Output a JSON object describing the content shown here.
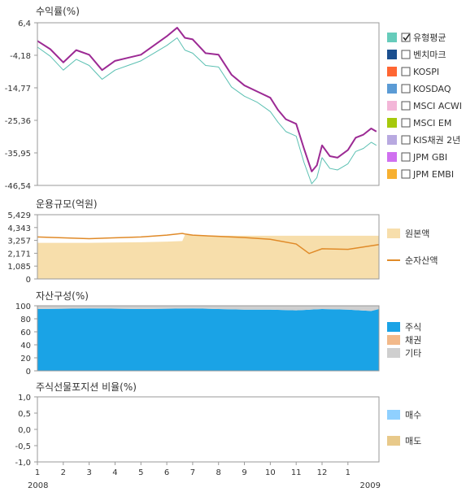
{
  "colors": {
    "fund": "#9c2a94",
    "bench": "#5bc0b2",
    "principal": "#f7deab",
    "net_assets": "#e08a28",
    "stock": "#1aa3e6",
    "bond": "#f2b98a",
    "other": "#cfcfcf",
    "buy": "#8fd0ff",
    "sell": "#e8c98a",
    "frame": "#9a9a9a"
  },
  "year_labels": {
    "start": "2008",
    "end": "2009"
  },
  "chart_data": [
    {
      "id": "returns",
      "type": "line",
      "title": "수익률(%)",
      "x_month_labels": [
        "1",
        "2",
        "3",
        "4",
        "5",
        "6",
        "7",
        "8",
        "9",
        "10",
        "11",
        "12",
        "1"
      ],
      "ylim": [
        -46.54,
        6.4
      ],
      "y_ticks": [
        "6,4",
        "-4,18",
        "-14,77",
        "-25,36",
        "-35,95",
        "-46,54"
      ],
      "y_tick_values": [
        6.4,
        -4.18,
        -14.77,
        -25.36,
        -35.95,
        -46.54
      ],
      "x": [
        0,
        0.5,
        1,
        1.5,
        2,
        2.5,
        3,
        3.5,
        4,
        4.5,
        5,
        5.4,
        5.7,
        6,
        6.5,
        7,
        7.5,
        8,
        8.5,
        9,
        9.3,
        9.6,
        10,
        10.3,
        10.6,
        10.8,
        11,
        11.3,
        11.6,
        12,
        12.3,
        12.6,
        12.9,
        13.1
      ],
      "series": [
        {
          "name": "유형평균",
          "color_key": "fund",
          "values": [
            0.5,
            -2.2,
            -6.5,
            -2.5,
            -4.0,
            -9.0,
            -6.0,
            -5.0,
            -4.0,
            -1.0,
            2.0,
            4.8,
            1.5,
            1.0,
            -3.5,
            -4.0,
            -10.5,
            -14.0,
            -16.0,
            -18.0,
            -22.0,
            -25.0,
            -26.5,
            -34.5,
            -42.0,
            -40.0,
            -33.5,
            -37.0,
            -37.5,
            -35.0,
            -31.0,
            -30.0,
            -28.0,
            -29.0
          ]
        },
        {
          "name": "벤치마크",
          "color_key": "bench",
          "values": [
            -1.5,
            -4.5,
            -9.0,
            -5.5,
            -7.5,
            -12.0,
            -9.0,
            -7.5,
            -6.0,
            -3.5,
            -1.0,
            1.5,
            -2.5,
            -3.5,
            -7.5,
            -8.0,
            -14.5,
            -17.5,
            -19.5,
            -22.5,
            -26.0,
            -29.0,
            -30.5,
            -39.0,
            -46.0,
            -44.0,
            -37.5,
            -41.0,
            -41.5,
            -39.5,
            -35.5,
            -34.5,
            -32.5,
            -33.5
          ]
        }
      ],
      "legend": [
        {
          "label": "유형평균",
          "color": "#66ccbb",
          "checked": true
        },
        {
          "label": "벤치마크",
          "color": "#1b4f8f",
          "checked": false
        },
        {
          "label": "KOSPI",
          "color": "#ff6633",
          "checked": false
        },
        {
          "label": "KOSDAQ",
          "color": "#5b9bd5",
          "checked": false
        },
        {
          "label": "MSCI ACWI",
          "color": "#f3b6d8",
          "checked": false
        },
        {
          "label": "MSCI EM",
          "color": "#a6c90c",
          "checked": false
        },
        {
          "label": "KIS채권 2년",
          "color": "#b8a9e0",
          "checked": false
        },
        {
          "label": "JPM GBI",
          "color": "#d070f0",
          "checked": false
        },
        {
          "label": "JPM EMBI",
          "color": "#f7b030",
          "checked": false
        }
      ]
    },
    {
      "id": "aum",
      "type": "area",
      "title": "운용규모(억원)",
      "ylim": [
        0,
        5429
      ],
      "y_ticks": [
        "5,429",
        "4,343",
        "3,257",
        "2,171",
        "1,085",
        "0"
      ],
      "y_tick_values": [
        5429,
        4343,
        3257,
        2171,
        1085,
        0
      ],
      "x": [
        0,
        2,
        4,
        5,
        5.6,
        5.7,
        6,
        7,
        8,
        9,
        10,
        10.5,
        11,
        12,
        13.2
      ],
      "series": [
        {
          "name": "원본액",
          "color_key": "principal",
          "values": [
            3050,
            3050,
            3100,
            3150,
            3200,
            3720,
            3700,
            3650,
            3650,
            3650,
            3650,
            3650,
            3650,
            3650,
            3650
          ]
        },
        {
          "name": "순자산액",
          "color_key": "net_assets",
          "values": [
            3550,
            3400,
            3550,
            3700,
            3850,
            3800,
            3700,
            3600,
            3500,
            3350,
            2950,
            2150,
            2550,
            2500,
            2900
          ]
        }
      ],
      "legend": [
        {
          "label": "원본액",
          "color_key": "principal",
          "kind": "box"
        },
        {
          "label": "순자산액",
          "color_key": "net_assets",
          "kind": "line"
        }
      ]
    },
    {
      "id": "composition",
      "type": "area",
      "title": "자산구성(%)",
      "ylim": [
        0,
        100
      ],
      "y_ticks": [
        "100",
        "80",
        "60",
        "40",
        "20",
        "0"
      ],
      "y_tick_values": [
        100,
        80,
        60,
        40,
        20,
        0
      ],
      "x": [
        0,
        2,
        4,
        6,
        7,
        8,
        9,
        10,
        11,
        12,
        12.9,
        13.2
      ],
      "series": [
        {
          "name": "주식",
          "color_key": "stock",
          "values": [
            95,
            96,
            95,
            96,
            95,
            94,
            94,
            93,
            95,
            94,
            92,
            95
          ]
        },
        {
          "name": "채권",
          "color_key": "bond",
          "values": [
            0,
            0,
            0,
            0,
            0,
            0,
            0,
            0,
            0,
            0,
            0,
            0
          ]
        },
        {
          "name": "기타",
          "color_key": "other",
          "values": [
            5,
            4,
            5,
            4,
            5,
            6,
            6,
            7,
            5,
            6,
            8,
            5
          ]
        }
      ],
      "legend": [
        {
          "label": "주식",
          "color_key": "stock"
        },
        {
          "label": "채권",
          "color_key": "bond"
        },
        {
          "label": "기타",
          "color_key": "other"
        }
      ]
    },
    {
      "id": "futures",
      "type": "bar",
      "title": "주식선물포지션 비율(%)",
      "ylim": [
        -1.0,
        1.0
      ],
      "y_ticks": [
        "1,0",
        "0,5",
        "0,0",
        "-0,5",
        "-1,0"
      ],
      "y_tick_values": [
        1.0,
        0.5,
        0.0,
        -0.5,
        -1.0
      ],
      "x_month_labels": [
        "1",
        "2",
        "3",
        "4",
        "5",
        "6",
        "7",
        "8",
        "9",
        "10",
        "11",
        "12",
        "1"
      ],
      "series": [
        {
          "name": "매수",
          "color_key": "buy",
          "values": []
        },
        {
          "name": "매도",
          "color_key": "sell",
          "values": []
        }
      ],
      "legend": [
        {
          "label": "매수",
          "color_key": "buy"
        },
        {
          "label": "매도",
          "color_key": "sell"
        }
      ]
    }
  ]
}
